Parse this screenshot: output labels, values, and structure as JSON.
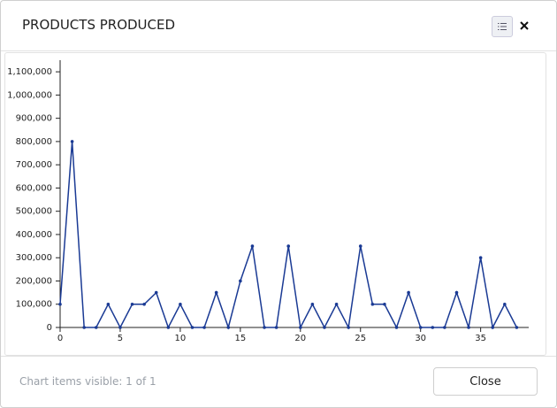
{
  "chart_data": {
    "type": "line",
    "title": "PRODUCTS PRODUCED",
    "x": [
      0,
      1,
      2,
      3,
      4,
      5,
      6,
      7,
      8,
      9,
      10,
      11,
      12,
      13,
      14,
      15,
      16,
      17,
      18,
      19,
      20,
      21,
      22,
      23,
      24,
      25,
      26,
      27,
      28,
      29,
      30,
      31,
      32,
      33,
      34,
      35,
      36,
      37,
      38
    ],
    "values": [
      100000,
      800000,
      0,
      0,
      100000,
      0,
      100000,
      100000,
      150000,
      0,
      100000,
      0,
      0,
      150000,
      0,
      200000,
      350000,
      0,
      0,
      350000,
      0,
      100000,
      0,
      100000,
      0,
      350000,
      100000,
      100000,
      0,
      150000,
      0,
      0,
      0,
      150000,
      0,
      300000,
      0,
      100000,
      0
    ],
    "color": "#1a3a94",
    "xlim": [
      0,
      39
    ],
    "xticks": [
      0,
      5,
      10,
      15,
      20,
      25,
      30,
      35
    ],
    "ylim": [
      0,
      1150000
    ],
    "yticks": [
      0,
      {
        "value": 100000,
        "label": "100,000"
      },
      {
        "value": 200000,
        "label": "200,000"
      },
      {
        "value": 300000,
        "label": "300,000"
      },
      {
        "value": 400000,
        "label": "400,000"
      },
      {
        "value": 500000,
        "label": "500,000"
      },
      {
        "value": 600000,
        "label": "600,000"
      },
      {
        "value": 700000,
        "label": "700,000"
      },
      {
        "value": 800000,
        "label": "800,000"
      },
      {
        "value": 900000,
        "label": "900,000"
      },
      {
        "value": 1000000,
        "label": "1,000,000"
      },
      {
        "value": 1100000,
        "label": "1,100,000"
      }
    ],
    "markers": true
  },
  "footer": {
    "status": "Chart items visible: 1 of 1",
    "button": "Close"
  }
}
